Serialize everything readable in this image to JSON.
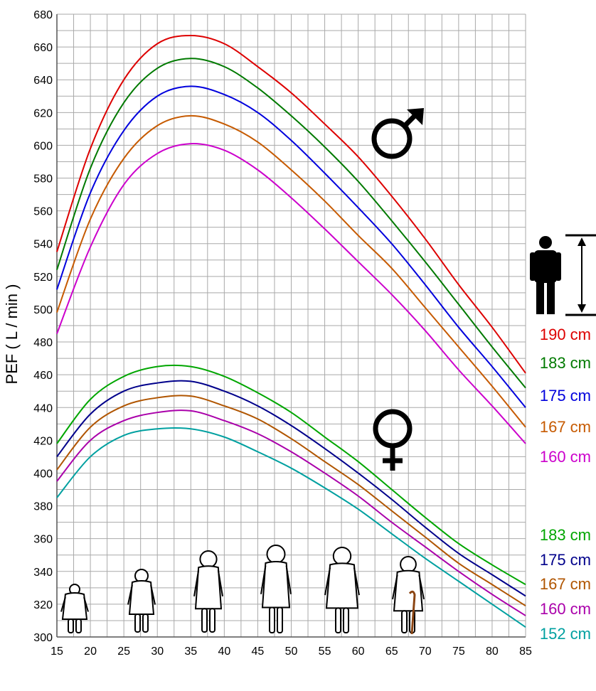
{
  "chart_data": {
    "type": "line",
    "title": "",
    "xlabel": "",
    "ylabel": "PEF ( L / min )",
    "xlim": [
      15,
      85
    ],
    "ylim": [
      300,
      680
    ],
    "xticks": [
      "15",
      "20",
      "25",
      "30",
      "35",
      "40",
      "45",
      "50",
      "55",
      "60",
      "65",
      "70",
      "75",
      "80",
      "85"
    ],
    "yticks": [
      "300",
      "320",
      "340",
      "360",
      "380",
      "400",
      "420",
      "440",
      "460",
      "480",
      "500",
      "520",
      "540",
      "560",
      "580",
      "600",
      "620",
      "640",
      "660",
      "680"
    ],
    "grid": true,
    "male_symbol": "male-symbol",
    "female_symbol": "female-symbol",
    "height_icon": "standing-person-icon",
    "x": [
      15,
      20,
      25,
      30,
      35,
      40,
      45,
      50,
      55,
      60,
      65,
      70,
      75,
      80,
      85
    ],
    "groups": [
      {
        "sex": "male",
        "series": [
          {
            "name": "190 cm",
            "color": "#dd0000",
            "values": [
              535,
              598,
              640,
              662,
              667,
              662,
              648,
              632,
              613,
              593,
              569,
              543,
              515,
              489,
              461
            ]
          },
          {
            "name": "183 cm",
            "color": "#007a00",
            "values": [
              524,
              586,
              626,
              647,
              653,
              648,
              635,
              618,
              599,
              578,
              554,
              529,
              503,
              477,
              452
            ]
          },
          {
            "name": "175 cm",
            "color": "#0000dd",
            "values": [
              512,
              571,
              609,
              630,
              636,
              631,
              620,
              603,
              583,
              562,
              540,
              515,
              489,
              465,
              440
            ]
          },
          {
            "name": "167 cm",
            "color": "#c65a00",
            "values": [
              498,
              555,
              592,
              612,
              618,
              613,
              602,
              585,
              566,
              545,
              525,
              501,
              477,
              453,
              428
            ]
          },
          {
            "name": "160 cm",
            "color": "#cc00cc",
            "values": [
              485,
              538,
              576,
              595,
              601,
              597,
              585,
              568,
              549,
              529,
              509,
              487,
              463,
              441,
              418
            ]
          }
        ]
      },
      {
        "sex": "female",
        "series": [
          {
            "name": "183 cm",
            "color": "#00a600",
            "values": [
              418,
              445,
              459,
              465,
              465,
              459,
              449,
              437,
              422,
              407,
              390,
              373,
              357,
              344,
              332
            ]
          },
          {
            "name": "175 cm",
            "color": "#00008b",
            "values": [
              410,
              436,
              450,
              455,
              456,
              450,
              441,
              429,
              415,
              400,
              384,
              367,
              351,
              338,
              325
            ]
          },
          {
            "name": "167 cm",
            "color": "#b05500",
            "values": [
              402,
              428,
              441,
              446,
              447,
              441,
              433,
              421,
              407,
              393,
              377,
              361,
              345,
              332,
              319
            ]
          },
          {
            "name": "160 cm",
            "color": "#aa00aa",
            "values": [
              395,
              420,
              432,
              437,
              438,
              432,
              424,
              413,
              400,
              386,
              370,
              355,
              340,
              326,
              313
            ]
          },
          {
            "name": "152 cm",
            "color": "#00a0a0",
            "values": [
              385,
              410,
              423,
              427,
              427,
              422,
              413,
              403,
              391,
              378,
              363,
              348,
              334,
              320,
              306
            ]
          }
        ]
      }
    ]
  }
}
